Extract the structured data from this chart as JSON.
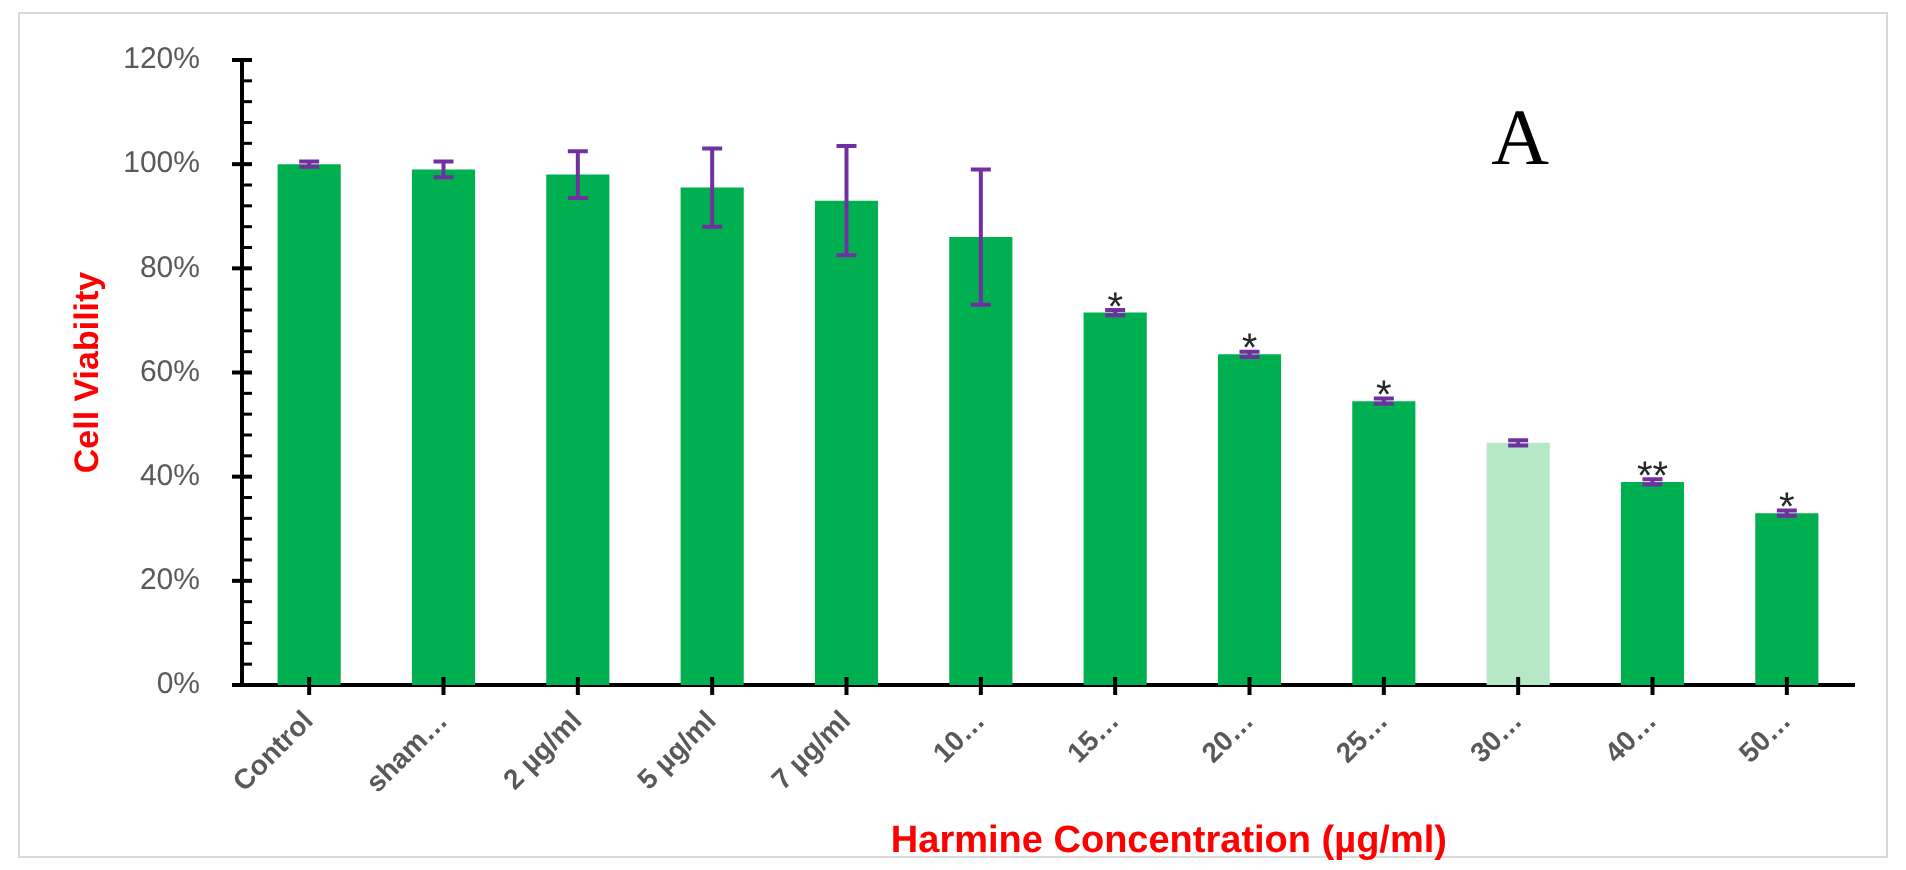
{
  "chart_data": {
    "type": "bar",
    "xlabel": "Harmine Concentration (µg/ml)",
    "ylabel": "Cell Viability",
    "categories": [
      "Control",
      "sham…",
      "2 µg/ml",
      "5 µg/ml",
      "7 µg/ml",
      "10…",
      "15…",
      "20…",
      "25…",
      "30…",
      "40…",
      "50…"
    ],
    "values": [
      100,
      99,
      98,
      95.5,
      93,
      86,
      71.5,
      63.5,
      54.5,
      46.5,
      39,
      33
    ],
    "errors": [
      0.5,
      1.5,
      4.5,
      7.5,
      10.5,
      13,
      0.5,
      0.5,
      0.5,
      0.5,
      0.5,
      0.5
    ],
    "colors": [
      "#00b050",
      "#00b050",
      "#00b050",
      "#00b050",
      "#00b050",
      "#00b050",
      "#00b050",
      "#00b050",
      "#00b050",
      "#b6e8c8",
      "#00b050",
      "#00b050"
    ],
    "ylim": [
      0,
      120
    ],
    "yticks": [
      {
        "value": 0,
        "label": "0%"
      },
      {
        "value": 4,
        "label": null
      },
      {
        "value": 8,
        "label": null
      },
      {
        "value": 12,
        "label": null
      },
      {
        "value": 16,
        "label": null
      },
      {
        "value": 20,
        "label": "20%"
      },
      {
        "value": 24,
        "label": null
      },
      {
        "value": 28,
        "label": null
      },
      {
        "value": 32,
        "label": null
      },
      {
        "value": 36,
        "label": null
      },
      {
        "value": 40,
        "label": "40%"
      },
      {
        "value": 44,
        "label": null
      },
      {
        "value": 48,
        "label": null
      },
      {
        "value": 52,
        "label": null
      },
      {
        "value": 56,
        "label": null
      },
      {
        "value": 60,
        "label": "60%"
      },
      {
        "value": 64,
        "label": null
      },
      {
        "value": 68,
        "label": null
      },
      {
        "value": 72,
        "label": null
      },
      {
        "value": 76,
        "label": null
      },
      {
        "value": 80,
        "label": "80%"
      },
      {
        "value": 84,
        "label": null
      },
      {
        "value": 88,
        "label": null
      },
      {
        "value": 92,
        "label": null
      },
      {
        "value": 96,
        "label": null
      },
      {
        "value": 100,
        "label": "100%"
      },
      {
        "value": 104,
        "label": null
      },
      {
        "value": 108,
        "label": null
      },
      {
        "value": 112,
        "label": null
      },
      {
        "value": 116,
        "label": null
      },
      {
        "value": 120,
        "label": "120%"
      }
    ],
    "grid": false,
    "legend": false,
    "annotations": [
      "A",
      {
        "text": "*",
        "x": "15…",
        "y": 71.5
      },
      {
        "text": "*",
        "x": "20…",
        "y": 63.5
      },
      {
        "text": "*",
        "x": "25…",
        "y": 54.5
      },
      {
        "text": "**",
        "x": "40…",
        "y": 39
      },
      {
        "text": "*",
        "x": "50…",
        "y": 33
      }
    ]
  }
}
